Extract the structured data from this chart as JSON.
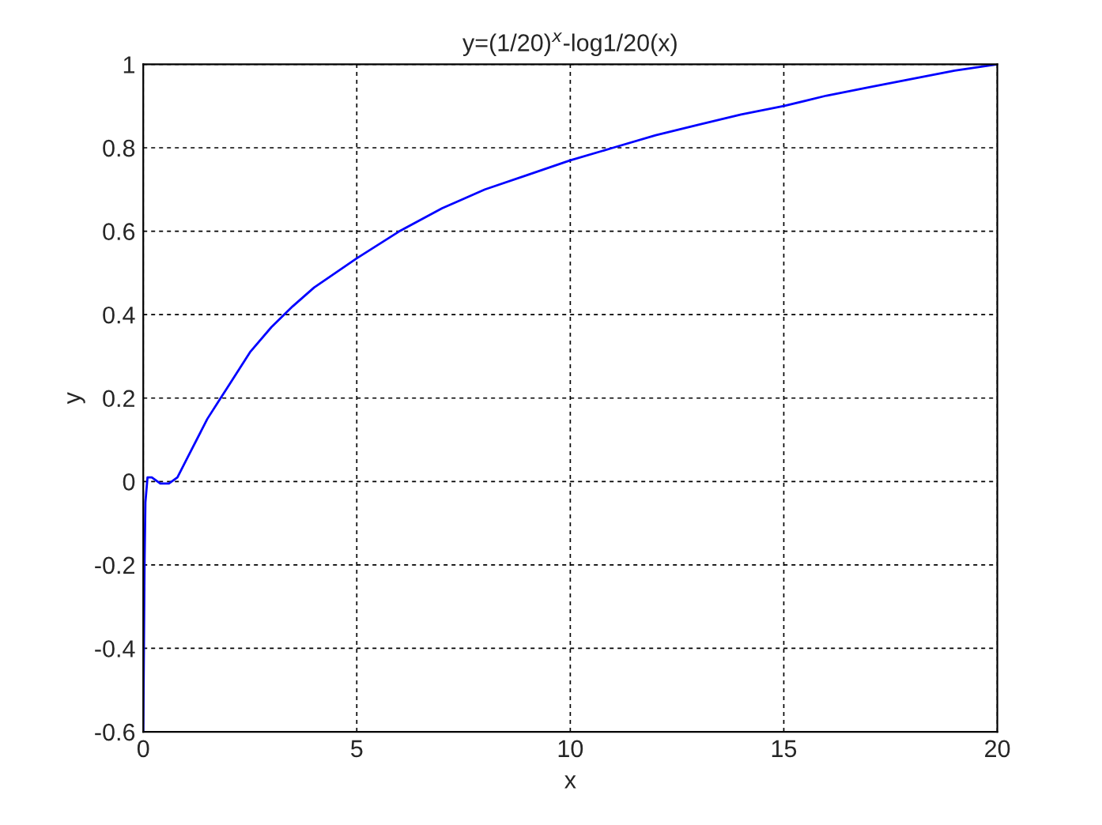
{
  "chart_data": {
    "type": "line",
    "title": "y=(1/20)$^{x}$-log1/20(x)",
    "xlabel": "x",
    "ylabel": "y",
    "series": [
      {
        "color": "#0000ff",
        "x": [
          0,
          0.03,
          0.05,
          0.1,
          0.2,
          0.4,
          0.6,
          0.8,
          1,
          1.5,
          2,
          2.5,
          3,
          3.5,
          4,
          4.5,
          5,
          6,
          7,
          8,
          9,
          10,
          11,
          12,
          13,
          14,
          15,
          16,
          17,
          18,
          19,
          20
        ],
        "values": [
          -0.6,
          -0.2,
          -0.05,
          0.01,
          0.01,
          -0.005,
          -0.005,
          0.01,
          0.05,
          0.15,
          0.23,
          0.31,
          0.37,
          0.42,
          0.465,
          0.5,
          0.535,
          0.6,
          0.655,
          0.7,
          0.735,
          0.77,
          0.8,
          0.83,
          0.855,
          0.88,
          0.9,
          0.925,
          0.945,
          0.965,
          0.985,
          1
        ]
      }
    ],
    "xlim": [
      0,
      20
    ],
    "ylim": [
      -0.6,
      1
    ],
    "xticks": [
      0,
      5,
      10,
      15,
      20
    ],
    "yticks": [
      -0.6,
      -0.4,
      -0.2,
      0,
      0.2,
      0.4,
      0.6,
      0.8,
      1
    ],
    "grid": true,
    "line_style": "solid",
    "marker": "none"
  }
}
